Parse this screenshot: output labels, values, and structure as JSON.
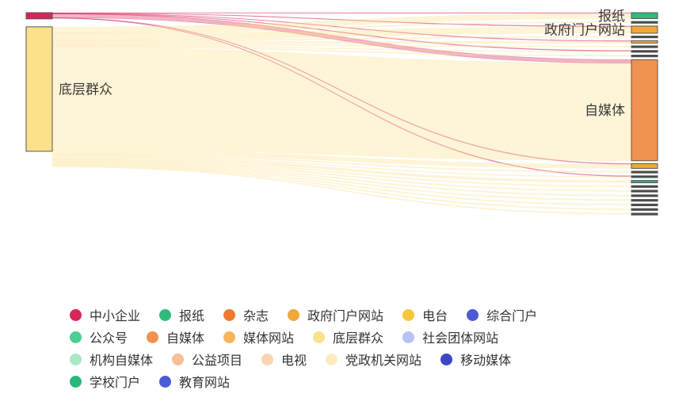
{
  "chart_data": {
    "type": "sankey",
    "title": "",
    "sources": [
      {
        "name": "中小企业",
        "color": "#d6265a",
        "label": ""
      },
      {
        "name": "底层群众",
        "color": "#fde08a",
        "label": "底层群众"
      }
    ],
    "targets": [
      {
        "name": "报纸",
        "color": "#2fbb7b",
        "label": "报纸"
      },
      {
        "name": "target-2",
        "color": "#444444",
        "label": ""
      },
      {
        "name": "政府门户网站",
        "color": "#f0a83a",
        "label": "政府门户网站"
      },
      {
        "name": "target-4",
        "color": "#444444",
        "label": ""
      },
      {
        "name": "target-5",
        "color": "#f0a83a",
        "label": ""
      },
      {
        "name": "target-6",
        "color": "#444444",
        "label": ""
      },
      {
        "name": "target-7",
        "color": "#444444",
        "label": ""
      },
      {
        "name": "target-8",
        "color": "#444444",
        "label": ""
      },
      {
        "name": "自媒体",
        "color": "#f0924f",
        "label": "自媒体"
      },
      {
        "name": "target-10",
        "color": "#f0a83a",
        "label": ""
      },
      {
        "name": "target-11",
        "color": "#444444",
        "label": ""
      },
      {
        "name": "target-12",
        "color": "#444444",
        "label": ""
      },
      {
        "name": "target-13",
        "color": "#3aa88a",
        "label": ""
      },
      {
        "name": "target-14",
        "color": "#444444",
        "label": ""
      },
      {
        "name": "target-15",
        "color": "#444444",
        "label": ""
      },
      {
        "name": "target-16",
        "color": "#444444",
        "label": ""
      },
      {
        "name": "target-17",
        "color": "#444444",
        "label": ""
      },
      {
        "name": "target-18",
        "color": "#444444",
        "label": ""
      },
      {
        "name": "target-19",
        "color": "#444444",
        "label": ""
      },
      {
        "name": "target-20",
        "color": "#444444",
        "label": ""
      }
    ],
    "source_values": [
      1,
      20
    ],
    "target_values": [
      1,
      0.2,
      1.2,
      0.2,
      0.4,
      0.2,
      0.2,
      0.2,
      17,
      0.8,
      0.2,
      0.2,
      0.4,
      0.2,
      0.2,
      0.2,
      0.2,
      0.2,
      0.2,
      0.2
    ],
    "links": [
      {
        "source": 0,
        "target": 0,
        "value": 0.05
      },
      {
        "source": 0,
        "target": 2,
        "value": 0.05
      },
      {
        "source": 0,
        "target": 4,
        "value": 0.05
      },
      {
        "source": 0,
        "target": 6,
        "value": 0.05
      },
      {
        "source": 0,
        "target": 8,
        "value": 0.6
      },
      {
        "source": 0,
        "target": 9,
        "value": 0.05
      },
      {
        "source": 0,
        "target": 11,
        "value": 0.05
      },
      {
        "source": 1,
        "target": 0,
        "value": 0.9
      },
      {
        "source": 1,
        "target": 1,
        "value": 0.2
      },
      {
        "source": 1,
        "target": 2,
        "value": 1.1
      },
      {
        "source": 1,
        "target": 3,
        "value": 0.2
      },
      {
        "source": 1,
        "target": 4,
        "value": 0.35
      },
      {
        "source": 1,
        "target": 5,
        "value": 0.2
      },
      {
        "source": 1,
        "target": 6,
        "value": 0.15
      },
      {
        "source": 1,
        "target": 7,
        "value": 0.2
      },
      {
        "source": 1,
        "target": 8,
        "value": 16.4
      },
      {
        "source": 1,
        "target": 9,
        "value": 0.7
      },
      {
        "source": 1,
        "target": 10,
        "value": 0.2
      },
      {
        "source": 1,
        "target": 11,
        "value": 0.15
      },
      {
        "source": 1,
        "target": 12,
        "value": 0.4
      },
      {
        "source": 1,
        "target": 13,
        "value": 0.2
      },
      {
        "source": 1,
        "target": 14,
        "value": 0.2
      },
      {
        "source": 1,
        "target": 15,
        "value": 0.2
      },
      {
        "source": 1,
        "target": 16,
        "value": 0.2
      },
      {
        "source": 1,
        "target": 17,
        "value": 0.2
      },
      {
        "source": 1,
        "target": 18,
        "value": 0.2
      },
      {
        "source": 1,
        "target": 19,
        "value": 0.2
      }
    ],
    "legend": {
      "placement": "bottom",
      "rows": [
        [
          {
            "name": "中小企业",
            "color": "#d6265a"
          },
          {
            "name": "报纸",
            "color": "#2fbb7b"
          },
          {
            "name": "杂志",
            "color": "#ee7a32"
          },
          {
            "name": "政府门户网站",
            "color": "#f0a83a"
          },
          {
            "name": "电台",
            "color": "#f5c83a"
          },
          {
            "name": "综合门户",
            "color": "#4a5bd6"
          }
        ],
        [
          {
            "name": "公众号",
            "color": "#4ccf92"
          },
          {
            "name": "自媒体",
            "color": "#f0924f"
          },
          {
            "name": "媒体网站",
            "color": "#f6b55c"
          },
          {
            "name": "底层群众",
            "color": "#fde08a"
          },
          {
            "name": "社会团体网站",
            "color": "#b9c2f6"
          }
        ],
        [
          {
            "name": "机构自媒体",
            "color": "#a7e8c6"
          },
          {
            "name": "公益项目",
            "color": "#f9bd98"
          },
          {
            "name": "电视",
            "color": "#fcd4b5"
          },
          {
            "name": "党政机关网站",
            "color": "#feecc0"
          },
          {
            "name": "移动媒体",
            "color": "#3a48c8"
          }
        ],
        [
          {
            "name": "学校门户",
            "color": "#2ab77a"
          },
          {
            "name": "教育网站",
            "color": "#4a5bd6"
          }
        ]
      ]
    }
  }
}
